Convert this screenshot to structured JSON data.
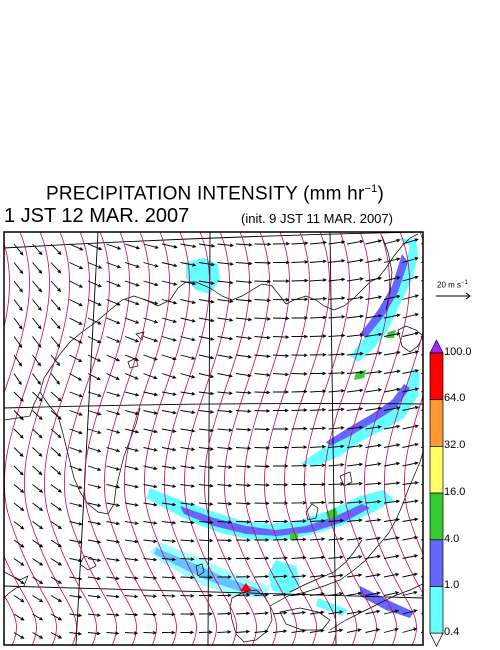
{
  "title": {
    "main": "PRECIPITATION INTENSITY (mm hr",
    "unit_exp": "−1",
    "close": ")"
  },
  "datetime": "1 JST 12 MAR. 2007",
  "init_label": "(init. 9 JST 11 MAR. 2007)",
  "wind_scale": {
    "label": "20 m s",
    "exp": "−1"
  },
  "colorbar": {
    "ticks": [
      "100.0",
      "64.0",
      "32.0",
      "16.0",
      "4.0",
      "1.0",
      "0.4"
    ],
    "colors": [
      "#ff0000",
      "#ff9933",
      "#ffff66",
      "#33cc33",
      "#6666ff",
      "#66ffff"
    ],
    "over_color": "#aa22ff",
    "under_color": "#ffffff"
  },
  "map": {
    "wind_arrow_color": "#000000",
    "isobar_color": "#cc0066",
    "coast_color": "#000000",
    "grid_color": "#000000"
  }
}
